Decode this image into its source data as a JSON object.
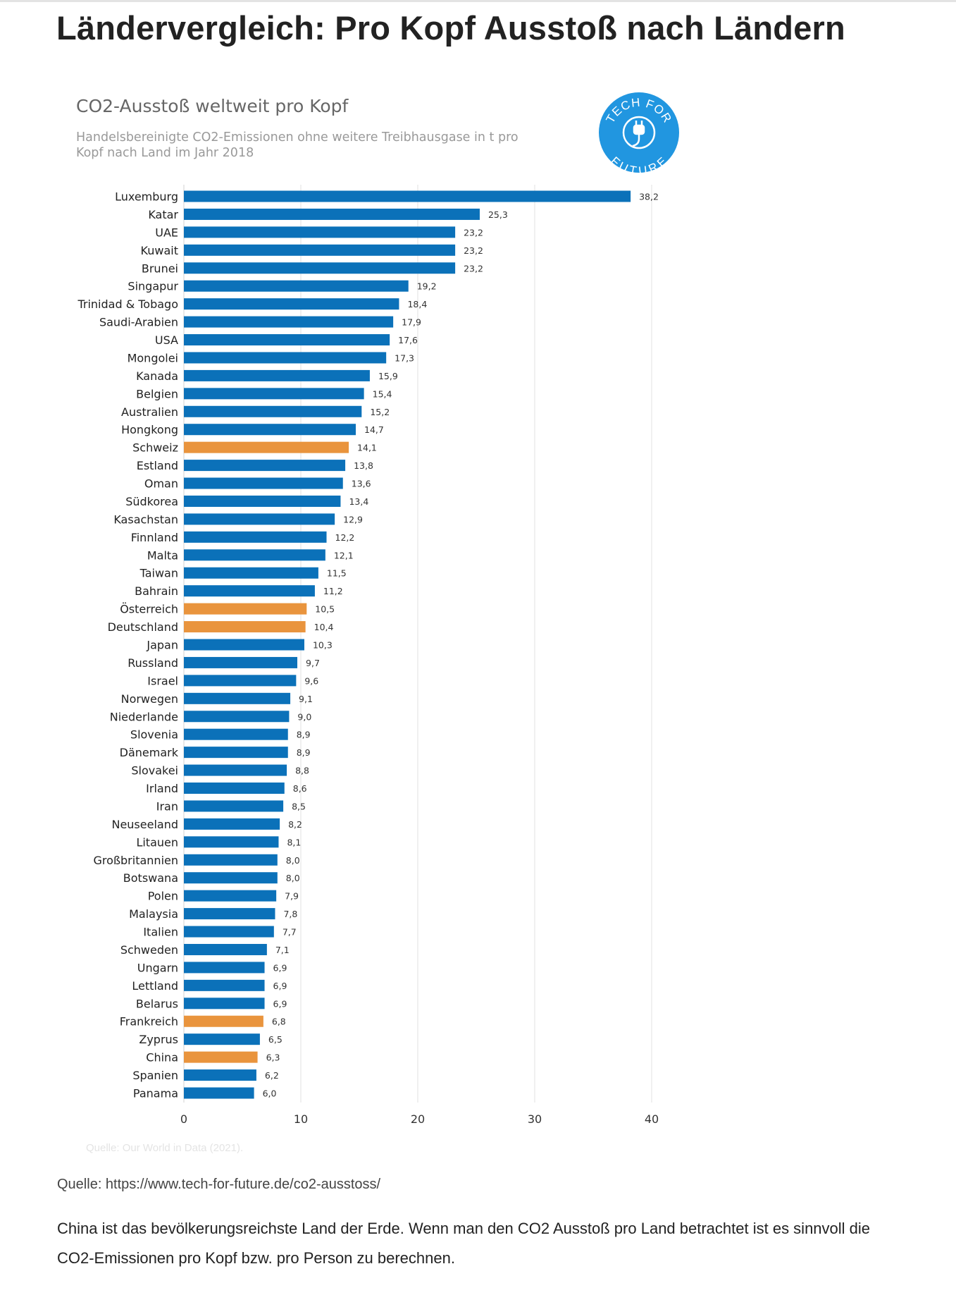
{
  "page": {
    "title": "Ländervergleich: Pro Kopf Ausstoß nach Ländern",
    "source_text": "Quelle: https://www.tech-for-future.de/co2-ausstoss/",
    "paragraph": "China ist das bevölkerungsreichste Land der Erde. Wenn man den CO2 Ausstoß pro Land betrachtet ist es sinnvoll die CO2-Emissionen pro Kopf bzw. pro Person zu berechnen."
  },
  "logo": {
    "text_top": "TECH FOR",
    "text_bottom": "FUTURE",
    "icon": "plug-icon",
    "color": "#2196e0"
  },
  "chart_data": {
    "type": "bar",
    "orientation": "horizontal",
    "title": "CO2-Ausstoß weltweit pro Kopf",
    "subtitle": "Handelsbereinigte CO2-Emissionen ohne weitere Treibhausgase in t pro Kopf nach Land im Jahr 2018",
    "source": "Quelle: Our World in Data (2021).",
    "xlim": [
      0,
      40
    ],
    "xticks": [
      0,
      10,
      20,
      30,
      40
    ],
    "grid": true,
    "colors": {
      "default": "#0b71b9",
      "highlight": "#e9943d"
    },
    "categories": [
      "Luxemburg",
      "Katar",
      "UAE",
      "Kuwait",
      "Brunei",
      "Singapur",
      "Trinidad & Tobago",
      "Saudi-Arabien",
      "USA",
      "Mongolei",
      "Kanada",
      "Belgien",
      "Australien",
      "Hongkong",
      "Schweiz",
      "Estland",
      "Oman",
      "Südkorea",
      "Kasachstan",
      "Finnland",
      "Malta",
      "Taiwan",
      "Bahrain",
      "Österreich",
      "Deutschland",
      "Japan",
      "Russland",
      "Israel",
      "Norwegen",
      "Niederlande",
      "Slovenia",
      "Dänemark",
      "Slovakei",
      "Irland",
      "Iran",
      "Neuseeland",
      "Litauen",
      "Großbritannien",
      "Botswana",
      "Polen",
      "Malaysia",
      "Italien",
      "Schweden",
      "Ungarn",
      "Lettland",
      "Belarus",
      "Frankreich",
      "Zyprus",
      "China",
      "Spanien",
      "Panama"
    ],
    "values": [
      38.2,
      25.3,
      23.2,
      23.2,
      23.2,
      19.2,
      18.4,
      17.9,
      17.6,
      17.3,
      15.9,
      15.4,
      15.2,
      14.7,
      14.1,
      13.8,
      13.6,
      13.4,
      12.9,
      12.2,
      12.1,
      11.5,
      11.2,
      10.5,
      10.4,
      10.3,
      9.7,
      9.6,
      9.1,
      9.0,
      8.9,
      8.9,
      8.8,
      8.6,
      8.5,
      8.2,
      8.1,
      8.0,
      8.0,
      7.9,
      7.8,
      7.7,
      7.1,
      6.9,
      6.9,
      6.9,
      6.8,
      6.5,
      6.3,
      6.2,
      6.0
    ],
    "value_labels": [
      "38,2",
      "25,3",
      "23,2",
      "23,2",
      "23,2",
      "19,2",
      "18,4",
      "17,9",
      "17,6",
      "17,3",
      "15,9",
      "15,4",
      "15,2",
      "14,7",
      "14,1",
      "13,8",
      "13,6",
      "13,4",
      "12,9",
      "12,2",
      "12,1",
      "11,5",
      "11,2",
      "10,5",
      "10,4",
      "10,3",
      "9,7",
      "9,6",
      "9,1",
      "9,0",
      "8,9",
      "8,9",
      "8,8",
      "8,6",
      "8,5",
      "8,2",
      "8,1",
      "8,0",
      "8,0",
      "7,9",
      "7,8",
      "7,7",
      "7,1",
      "6,9",
      "6,9",
      "6,9",
      "6,8",
      "6,5",
      "6,3",
      "6,2",
      "6,0"
    ],
    "highlighted": [
      "Schweiz",
      "Österreich",
      "Deutschland",
      "Frankreich",
      "China"
    ]
  }
}
